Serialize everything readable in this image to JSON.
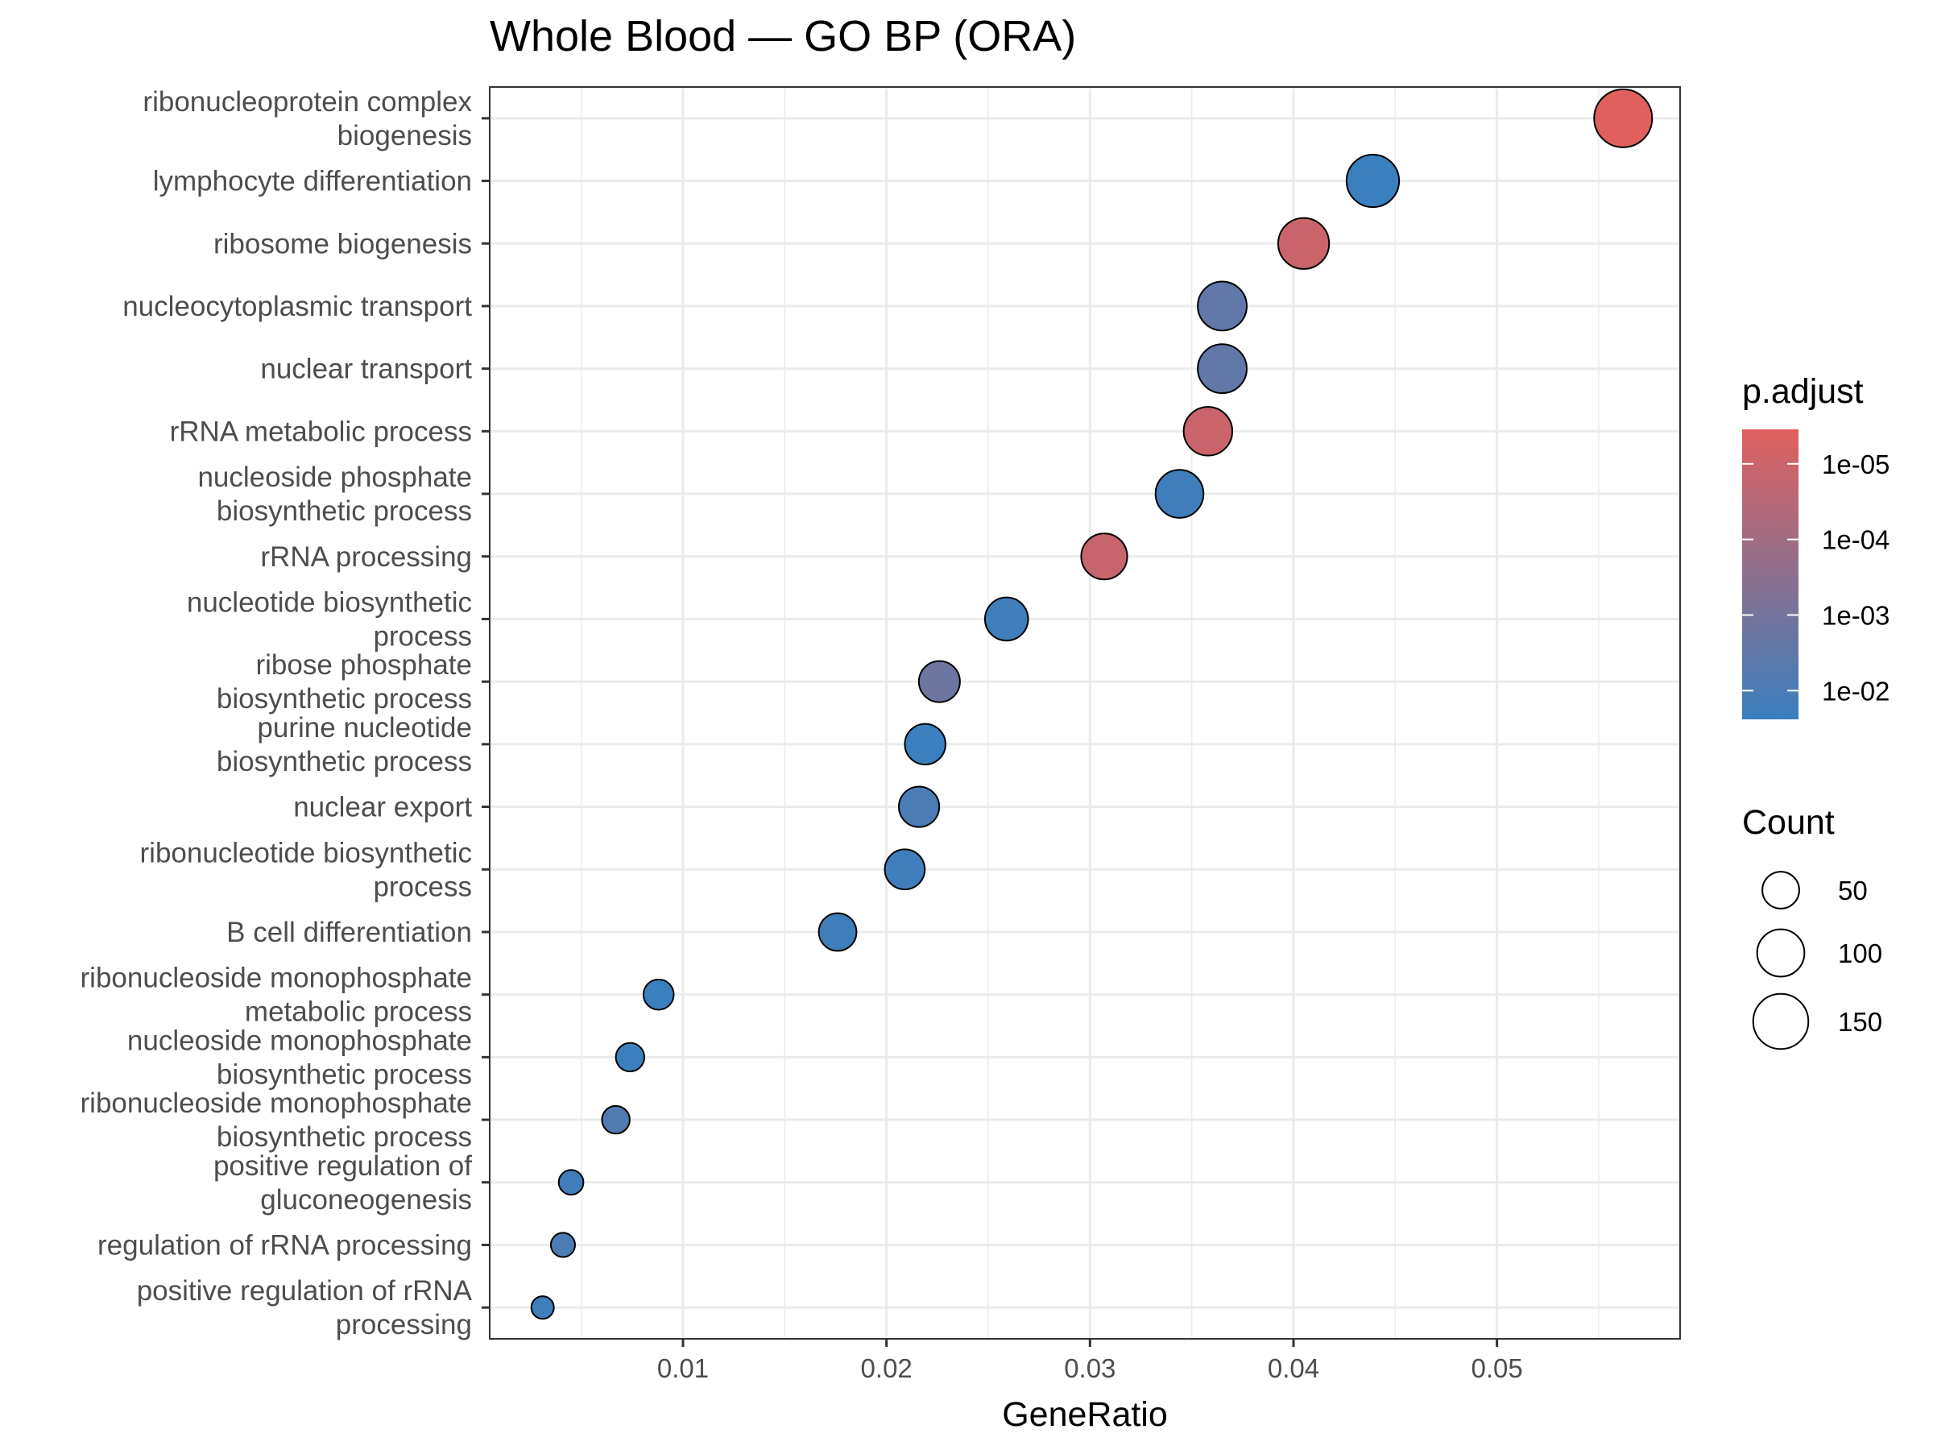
{
  "chart_data": {
    "type": "scatter",
    "title": "Whole Blood — GO BP (ORA)",
    "xlabel": "GeneRatio",
    "ylabel": "",
    "xlim": [
      0.0005,
      0.059
    ],
    "x_ticks": [
      0.01,
      0.02,
      0.03,
      0.04,
      0.05
    ],
    "x_tick_labels": [
      "0.01",
      "0.02",
      "0.03",
      "0.04",
      "0.05"
    ],
    "grid": true,
    "legend_position": "right",
    "color_legend": {
      "title": "p.adjust",
      "scale": "log",
      "low_color": "#E0605E",
      "high_color": "#3A7FBE",
      "ticks": [
        1e-05,
        0.0001,
        0.001,
        0.01
      ],
      "tick_labels": [
        "1e-05",
        "1e-04",
        "1e-03",
        "1e-02"
      ]
    },
    "size_legend": {
      "title": "Count",
      "values": [
        50,
        100,
        150
      ],
      "labels": [
        "50",
        "100",
        "150"
      ]
    },
    "points": [
      {
        "term": "ribonucleoprotein complex biogenesis",
        "label_lines": [
          "ribonucleoprotein complex",
          "biogenesis"
        ],
        "gene_ratio": 0.0562,
        "count": 170,
        "p_adjust": 5e-06
      },
      {
        "term": "lymphocyte differentiation",
        "label_lines": [
          "lymphocyte differentiation"
        ],
        "gene_ratio": 0.0439,
        "count": 132,
        "p_adjust": 0.013
      },
      {
        "term": "ribosome biogenesis",
        "label_lines": [
          "ribosome biogenesis"
        ],
        "gene_ratio": 0.0405,
        "count": 122,
        "p_adjust": 2.5e-05
      },
      {
        "term": "nucleocytoplasmic transport",
        "label_lines": [
          "nucleocytoplasmic transport"
        ],
        "gene_ratio": 0.0365,
        "count": 110,
        "p_adjust": 0.002
      },
      {
        "term": "nuclear transport",
        "label_lines": [
          "nuclear transport"
        ],
        "gene_ratio": 0.0365,
        "count": 110,
        "p_adjust": 0.002
      },
      {
        "term": "rRNA metabolic process",
        "label_lines": [
          "rRNA metabolic process"
        ],
        "gene_ratio": 0.0358,
        "count": 108,
        "p_adjust": 2.5e-05
      },
      {
        "term": "nucleoside phosphate biosynthetic process",
        "label_lines": [
          "nucleoside phosphate",
          "biosynthetic process"
        ],
        "gene_ratio": 0.0344,
        "count": 104,
        "p_adjust": 0.008
      },
      {
        "term": "rRNA processing",
        "label_lines": [
          "rRNA processing"
        ],
        "gene_ratio": 0.0307,
        "count": 93,
        "p_adjust": 3e-05
      },
      {
        "term": "nucleotide biosynthetic process",
        "label_lines": [
          "nucleotide biosynthetic",
          "process"
        ],
        "gene_ratio": 0.0259,
        "count": 78,
        "p_adjust": 0.008
      },
      {
        "term": "ribose phosphate biosynthetic process",
        "label_lines": [
          "ribose phosphate",
          "biosynthetic process"
        ],
        "gene_ratio": 0.0226,
        "count": 68,
        "p_adjust": 0.0012
      },
      {
        "term": "purine nucleotide biosynthetic process",
        "label_lines": [
          "purine nucleotide",
          "biosynthetic process"
        ],
        "gene_ratio": 0.0219,
        "count": 66,
        "p_adjust": 0.02
      },
      {
        "term": "nuclear export",
        "label_lines": [
          "nuclear export"
        ],
        "gene_ratio": 0.0216,
        "count": 65,
        "p_adjust": 0.005
      },
      {
        "term": "ribonucleotide biosynthetic process",
        "label_lines": [
          "ribonucleotide biosynthetic",
          "process"
        ],
        "gene_ratio": 0.0209,
        "count": 63,
        "p_adjust": 0.008
      },
      {
        "term": "B cell differentiation",
        "label_lines": [
          "B cell differentiation"
        ],
        "gene_ratio": 0.0176,
        "count": 53,
        "p_adjust": 0.008
      },
      {
        "term": "ribonucleoside monophosphate metabolic process",
        "label_lines": [
          "ribonucleoside monophosphate",
          "metabolic process"
        ],
        "gene_ratio": 0.0088,
        "count": 27,
        "p_adjust": 0.018
      },
      {
        "term": "nucleoside monophosphate biosynthetic process",
        "label_lines": [
          "nucleoside monophosphate",
          "biosynthetic process"
        ],
        "gene_ratio": 0.0074,
        "count": 22,
        "p_adjust": 0.015
      },
      {
        "term": "ribonucleoside monophosphate biosynthetic process",
        "label_lines": [
          "ribonucleoside monophosphate",
          "biosynthetic process"
        ],
        "gene_ratio": 0.0067,
        "count": 20,
        "p_adjust": 0.004
      },
      {
        "term": "positive regulation of gluconeogenesis",
        "label_lines": [
          "positive regulation of",
          "gluconeogenesis"
        ],
        "gene_ratio": 0.0045,
        "count": 13,
        "p_adjust": 0.008
      },
      {
        "term": "regulation of rRNA processing",
        "label_lines": [
          "regulation of rRNA processing"
        ],
        "gene_ratio": 0.0041,
        "count": 12,
        "p_adjust": 0.005
      },
      {
        "term": "positive regulation of rRNA processing",
        "label_lines": [
          "positive regulation of rRNA",
          "processing"
        ],
        "gene_ratio": 0.0031,
        "count": 9,
        "p_adjust": 0.008
      }
    ]
  }
}
